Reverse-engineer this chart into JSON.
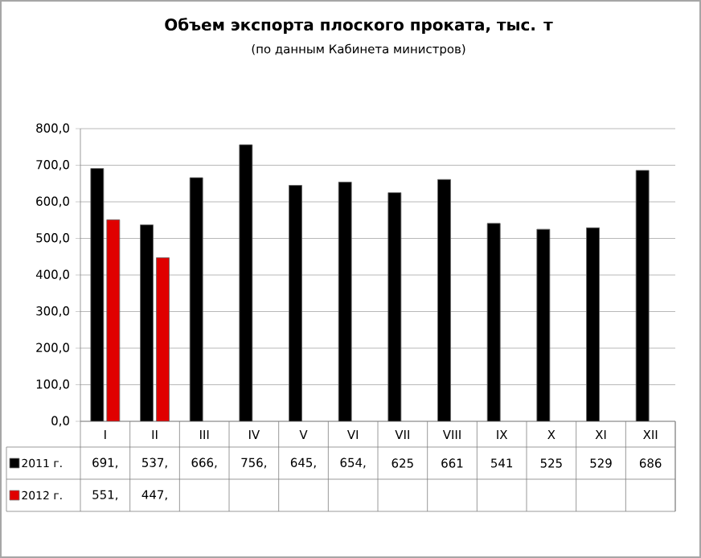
{
  "chart_data": {
    "type": "bar",
    "title": "Объем экспорта плоского проката, тыс. т",
    "subtitle": "(по данным Кабинета министров)",
    "categories": [
      "I",
      "II",
      "III",
      "IV",
      "V",
      "VI",
      "VII",
      "VIII",
      "IX",
      "X",
      "XI",
      "XII"
    ],
    "series": [
      {
        "name": "2011 г.",
        "color": "#000000",
        "values": [
          691,
          537,
          666,
          756,
          645,
          654,
          625,
          661,
          541,
          525,
          529,
          686
        ],
        "value_labels": [
          "691,",
          "537,",
          "666,",
          "756,",
          "645,",
          "654,",
          "625",
          "661",
          "541",
          "525",
          "529",
          "686"
        ]
      },
      {
        "name": "2012 г.",
        "color": "#e00000",
        "values": [
          551,
          447,
          null,
          null,
          null,
          null,
          null,
          null,
          null,
          null,
          null,
          null
        ],
        "value_labels": [
          "551,",
          "447,",
          null,
          null,
          null,
          null,
          null,
          null,
          null,
          null,
          null,
          null
        ]
      }
    ],
    "ylim": [
      0,
      800
    ],
    "yticks": [
      {
        "value": 0,
        "label": "0,0"
      },
      {
        "value": 100,
        "label": "100,0"
      },
      {
        "value": 200,
        "label": "200,0"
      },
      {
        "value": 300,
        "label": "300,0"
      },
      {
        "value": 400,
        "label": "400,0"
      },
      {
        "value": 500,
        "label": "500,0"
      },
      {
        "value": 600,
        "label": "600,0"
      },
      {
        "value": 700,
        "label": "700,0"
      },
      {
        "value": 800,
        "label": "800,0"
      }
    ],
    "grid": "y",
    "legend": "bottom"
  }
}
